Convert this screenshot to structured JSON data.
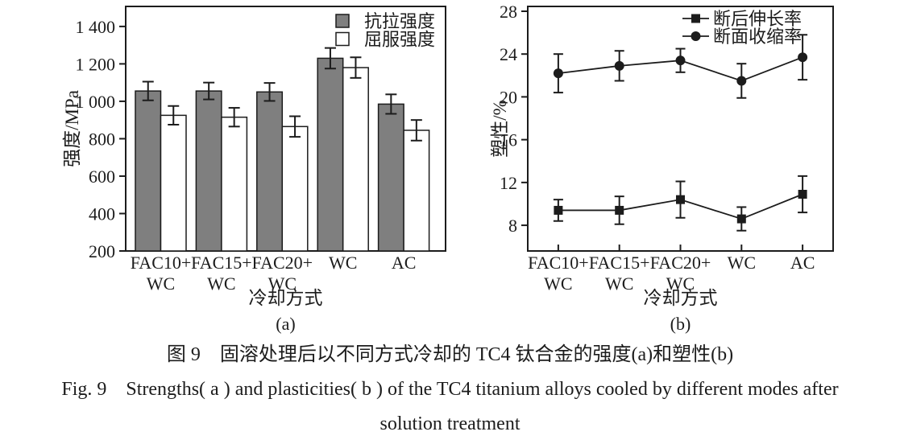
{
  "figure": {
    "caption_zh": "图 9　固溶处理后以不同方式冷却的 TC4 钛合金的强度(a)和塑性(b)",
    "caption_en_line1": "Fig. 9　Strengths( a ) and plasticities( b ) of the TC4 titanium alloys cooled by different modes after",
    "caption_en_line2": "solution treatment"
  },
  "colors": {
    "ink": "#1c1c1c",
    "bar_fill_gray": "#7f7f7f",
    "bar_fill_white": "#ffffff",
    "background": "#ffffff"
  },
  "chart_data": [
    {
      "type": "bar",
      "panel_label": "(a)",
      "categories": [
        [
          "FAC10+",
          "WC"
        ],
        [
          "FAC15+",
          "WC"
        ],
        [
          "FAC20+",
          "WC"
        ],
        [
          "WC"
        ],
        [
          "AC"
        ]
      ],
      "series": [
        {
          "name": "抗拉强度",
          "fill": "#7f7f7f",
          "values": [
            1055,
            1055,
            1050,
            1230,
            985
          ],
          "errors": [
            50,
            45,
            48,
            55,
            52
          ]
        },
        {
          "name": "屈服强度",
          "fill": "#ffffff",
          "values": [
            925,
            915,
            865,
            1180,
            845
          ],
          "errors": [
            50,
            50,
            55,
            55,
            55
          ]
        }
      ],
      "xlabel": "冷却方式",
      "ylabel": "强度/MPa",
      "ylim": [
        200,
        1507
      ],
      "yticks": [
        200,
        400,
        600,
        800,
        1000,
        1200,
        1400
      ],
      "ytick_labels": [
        "200",
        "400",
        "600",
        "800",
        "1 000",
        "1 200",
        "1 400"
      ],
      "grid": false,
      "legend_position": "top-right"
    },
    {
      "type": "line",
      "panel_label": "(b)",
      "categories": [
        [
          "FAC10+",
          "WC"
        ],
        [
          "FAC15+",
          "WC"
        ],
        [
          "FAC20+",
          "WC"
        ],
        [
          "WC"
        ],
        [
          "AC"
        ]
      ],
      "series": [
        {
          "name": "断后伸长率",
          "marker": "square",
          "values": [
            9.4,
            9.4,
            10.4,
            8.6,
            10.9
          ],
          "errors": [
            1.0,
            1.3,
            1.7,
            1.1,
            1.7
          ]
        },
        {
          "name": "断面收缩率",
          "marker": "circle",
          "values": [
            22.2,
            22.9,
            23.4,
            21.5,
            23.7
          ],
          "errors": [
            1.8,
            1.4,
            1.1,
            1.6,
            2.1
          ]
        }
      ],
      "xlabel": "冷却方式",
      "ylabel": "塑性/%",
      "ylim": [
        5.6,
        28.45
      ],
      "yticks": [
        8,
        12,
        16,
        20,
        24,
        28
      ],
      "ytick_labels": [
        "8",
        "12",
        "16",
        "20",
        "24",
        "28"
      ],
      "grid": false,
      "legend_position": "top-right"
    }
  ]
}
